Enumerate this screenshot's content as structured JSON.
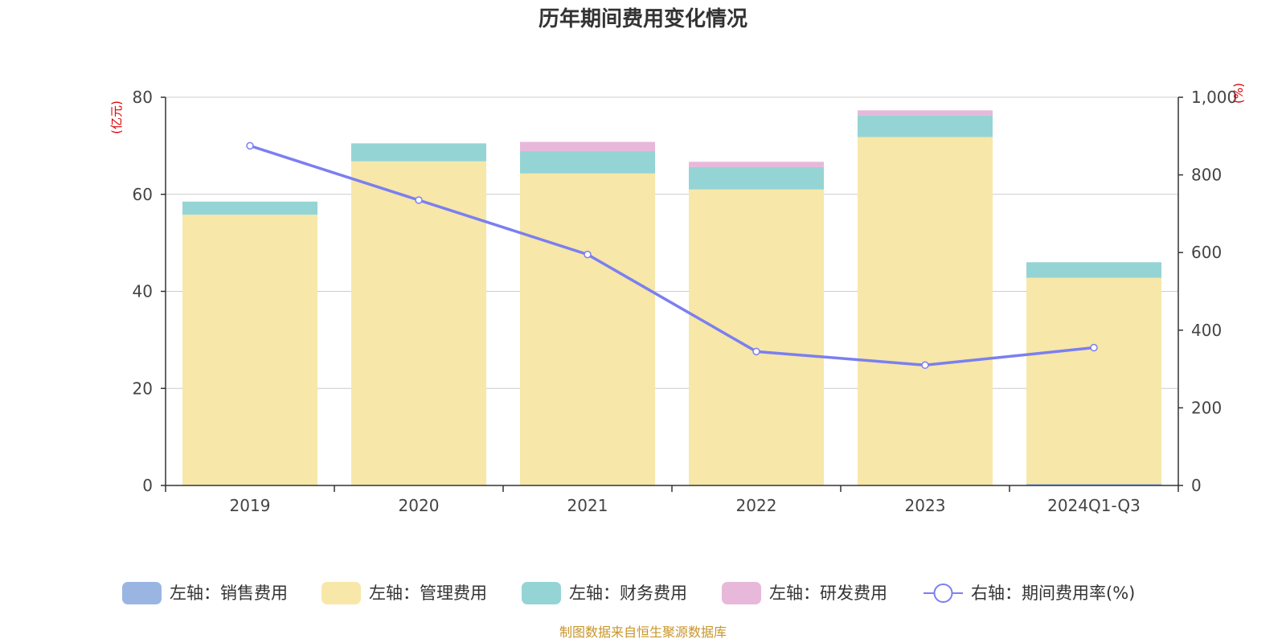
{
  "chart_data": {
    "type": "bar",
    "title": "历年期间费用变化情况",
    "categories": [
      "2019",
      "2020",
      "2021",
      "2022",
      "2023",
      "2024Q1-Q3"
    ],
    "left_axis": {
      "unit": "(亿元)",
      "ylim": [
        0,
        80
      ],
      "ticks": [
        "0",
        "20",
        "40",
        "60",
        "80"
      ]
    },
    "right_axis": {
      "unit": "(%)",
      "ylim": [
        0,
        1000
      ],
      "ticks": [
        "0",
        "200",
        "400",
        "600",
        "800",
        "1,000"
      ]
    },
    "series": [
      {
        "name": "左轴：销售费用",
        "type": "bar",
        "axis": "left",
        "color": "#9bb5e3",
        "values": [
          0,
          0,
          0,
          0,
          0,
          0.3
        ]
      },
      {
        "name": "左轴：管理费用",
        "type": "bar",
        "axis": "left",
        "color": "#f7e7a9",
        "values": [
          55.8,
          66.8,
          64.3,
          61.0,
          71.8,
          42.5
        ]
      },
      {
        "name": "左轴：财务费用",
        "type": "bar",
        "axis": "left",
        "color": "#95d4d5",
        "values": [
          2.7,
          3.7,
          4.6,
          4.6,
          4.5,
          3.2
        ]
      },
      {
        "name": "左轴：研发费用",
        "type": "bar",
        "axis": "left",
        "color": "#e7b8da",
        "values": [
          0,
          0,
          1.9,
          1.1,
          1.0,
          0
        ]
      },
      {
        "name": "右轴：期间费用率(%)",
        "type": "line",
        "axis": "right",
        "color": "#7b7ff0",
        "values": [
          875,
          735,
          595,
          345,
          310,
          355
        ]
      }
    ],
    "grid": true,
    "legend_position": "bottom"
  },
  "source": "制图数据来自恒生聚源数据库"
}
